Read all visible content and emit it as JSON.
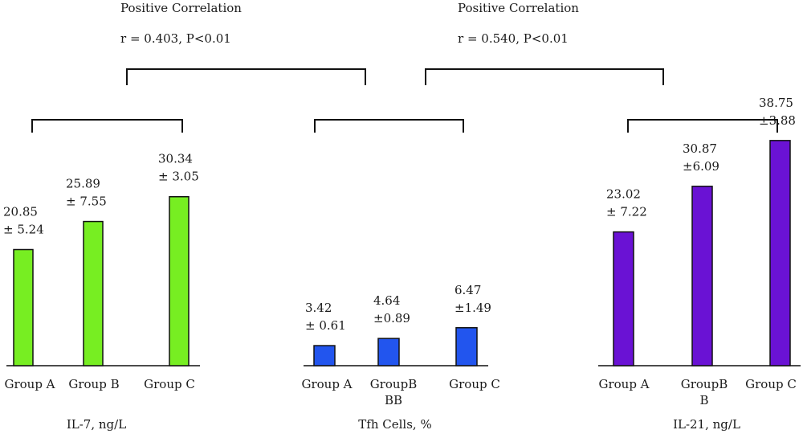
{
  "chart_data": [
    {
      "type": "bar",
      "xlabel": "IL-7, ng/L",
      "categories": [
        "Group A",
        "Group B",
        "Group C"
      ],
      "values": [
        20.85,
        25.89,
        30.34
      ],
      "labels": [
        [
          "20.85",
          "± 5.24"
        ],
        [
          "25.89",
          "± 7.55"
        ],
        [
          "30.34",
          "± 3.05"
        ]
      ],
      "color": "#77ee22"
    },
    {
      "type": "bar",
      "xlabel": "Tfh Cells, %",
      "categories": [
        "Group A",
        "GroupB\nBB",
        "Group C"
      ],
      "values": [
        3.42,
        4.64,
        6.47
      ],
      "labels": [
        [
          "3.42",
          "± 0.61"
        ],
        [
          "4.64",
          "±0.89"
        ],
        [
          "6.47",
          "±1.49"
        ]
      ],
      "color": "#2255ee"
    },
    {
      "type": "bar",
      "xlabel": "IL-21, ng/L",
      "categories": [
        "Group A",
        "GroupB\nB",
        "Group C"
      ],
      "values": [
        23.02,
        30.87,
        38.75
      ],
      "labels": [
        [
          "23.02",
          "± 7.22"
        ],
        [
          "30.87",
          "±6.09"
        ],
        [
          "38.75",
          "±3.88"
        ]
      ],
      "color": "#6a12d4"
    }
  ],
  "correlations": [
    {
      "title": "Positive Correlation",
      "stat": "r = 0.403, P<0.01"
    },
    {
      "title": "Positive Correlation",
      "stat": "r = 0.540, P<0.01"
    }
  ]
}
